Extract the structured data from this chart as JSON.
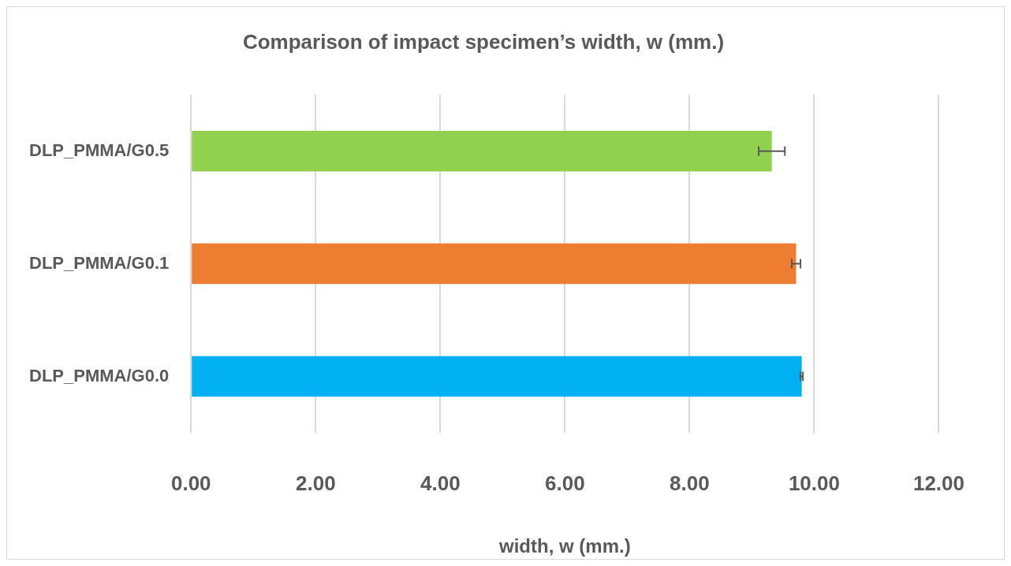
{
  "chart_data": {
    "type": "bar",
    "orientation": "horizontal",
    "title": "Comparison of impact specimen’s width, w (mm.)",
    "xlabel": "width, w (mm.)",
    "categories": [
      "DLP_PMMA/G0.5",
      "DLP_PMMA/G0.1",
      "DLP_PMMA/G0.0"
    ],
    "values": [
      9.32,
      9.71,
      9.8
    ],
    "errors": [
      0.21,
      0.07,
      0.02
    ],
    "colors": [
      "#92d050",
      "#ed7d31",
      "#00b0f0"
    ],
    "xlim": [
      0,
      12
    ],
    "xticks": [
      {
        "value": 0,
        "label": "0.00"
      },
      {
        "value": 2,
        "label": "2.00"
      },
      {
        "value": 4,
        "label": "4.00"
      },
      {
        "value": 6,
        "label": "6.00"
      },
      {
        "value": 8,
        "label": "8.00"
      },
      {
        "value": 10,
        "label": "10.00"
      },
      {
        "value": 12,
        "label": "12.00"
      }
    ],
    "grid": "x",
    "legend": false
  }
}
